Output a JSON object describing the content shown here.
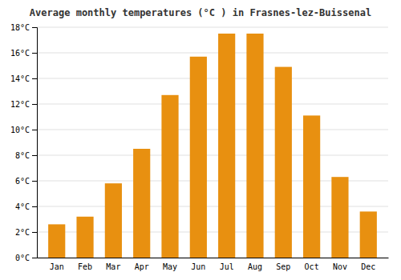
{
  "chart_data": {
    "type": "bar",
    "title": "Average monthly temperatures (°C ) in Frasnes-lez-Buissenal",
    "categories": [
      "Jan",
      "Feb",
      "Mar",
      "Apr",
      "May",
      "Jun",
      "Jul",
      "Aug",
      "Sep",
      "Oct",
      "Nov",
      "Dec"
    ],
    "values": [
      2.6,
      3.2,
      5.8,
      8.5,
      12.7,
      15.7,
      17.5,
      17.5,
      14.9,
      11.1,
      6.3,
      3.6
    ],
    "color": "#E89010",
    "ylim": [
      0,
      18
    ],
    "yticks": [
      {
        "value": 0,
        "label": "0°C"
      },
      {
        "value": 2,
        "label": "2°C"
      },
      {
        "value": 4,
        "label": "4°C"
      },
      {
        "value": 6,
        "label": "6°C"
      },
      {
        "value": 8,
        "label": "8°C"
      },
      {
        "value": 10,
        "label": "10°C"
      },
      {
        "value": 12,
        "label": "12°C"
      },
      {
        "value": 14,
        "label": "14°C"
      },
      {
        "value": 16,
        "label": "16°C"
      },
      {
        "value": 18,
        "label": "18°C"
      }
    ],
    "grid": true
  }
}
